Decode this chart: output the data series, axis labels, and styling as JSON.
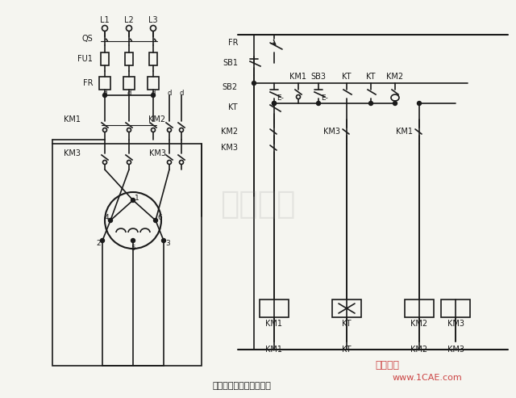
{
  "title": "双速电动机调速控制线路",
  "bg_color": "#f5f5f0",
  "line_color": "#1a1a1a",
  "text_color": "#1a1a1a",
  "watermark1": "仿真在线",
  "watermark2": "www.1CAE.com",
  "watermark_color1": "#cc0000",
  "watermark_color2": "#cc0000",
  "logo_text": "1CAE.com"
}
